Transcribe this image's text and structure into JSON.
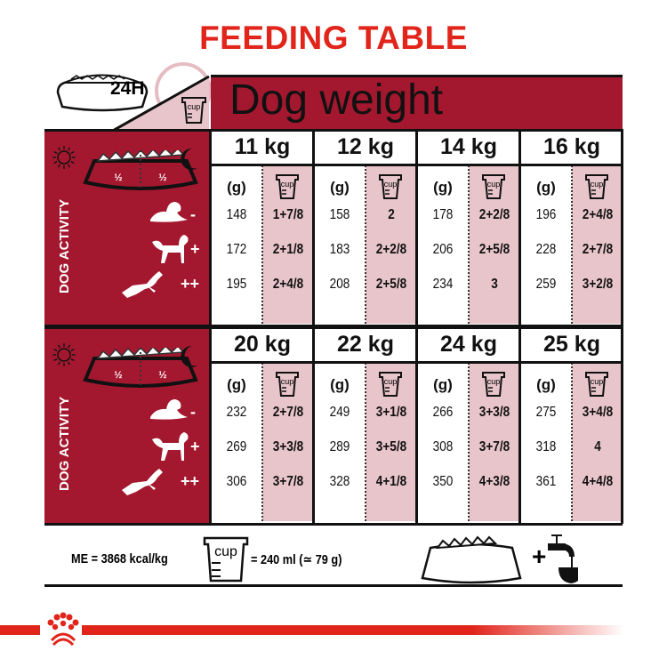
{
  "title": "FEEDING TABLE",
  "header": {
    "period": "24H",
    "dog_weight_label": "Dog weight",
    "cup_icon_label": "cup"
  },
  "side_panel": {
    "activity_label": "DOG ACTIVITY",
    "half_left": "½",
    "half_right": "½",
    "activity_levels": [
      "-",
      "+",
      "++"
    ]
  },
  "units": {
    "grams": "(g)",
    "cup": "cup"
  },
  "colors": {
    "title_red": "#e1251b",
    "panel_red": "#a3182f",
    "cup_column_pink": "#e8c5cb"
  },
  "blocks": [
    {
      "weights": [
        {
          "label": "11 kg",
          "rows": [
            [
              "148",
              "1+7/8"
            ],
            [
              "172",
              "2+1/8"
            ],
            [
              "195",
              "2+4/8"
            ]
          ]
        },
        {
          "label": "12 kg",
          "rows": [
            [
              "158",
              "2"
            ],
            [
              "183",
              "2+2/8"
            ],
            [
              "208",
              "2+5/8"
            ]
          ]
        },
        {
          "label": "14 kg",
          "rows": [
            [
              "178",
              "2+2/8"
            ],
            [
              "206",
              "2+5/8"
            ],
            [
              "234",
              "3"
            ]
          ]
        },
        {
          "label": "16 kg",
          "rows": [
            [
              "196",
              "2+4/8"
            ],
            [
              "228",
              "2+7/8"
            ],
            [
              "259",
              "3+2/8"
            ]
          ]
        }
      ]
    },
    {
      "weights": [
        {
          "label": "20 kg",
          "rows": [
            [
              "232",
              "2+7/8"
            ],
            [
              "269",
              "3+3/8"
            ],
            [
              "306",
              "3+7/8"
            ]
          ]
        },
        {
          "label": "22 kg",
          "rows": [
            [
              "249",
              "3+1/8"
            ],
            [
              "289",
              "3+5/8"
            ],
            [
              "328",
              "4+1/8"
            ]
          ]
        },
        {
          "label": "24 kg",
          "rows": [
            [
              "266",
              "3+3/8"
            ],
            [
              "308",
              "3+7/8"
            ],
            [
              "350",
              "4+3/8"
            ]
          ]
        },
        {
          "label": "25 kg",
          "rows": [
            [
              "275",
              "3+4/8"
            ],
            [
              "318",
              "4"
            ],
            [
              "361",
              "4+4/8"
            ]
          ]
        }
      ]
    }
  ],
  "footer": {
    "energy": "ME = 3868 kcal/kg",
    "cup_equivalence": "= 240 ml (≃ 79 g)",
    "plus": "+"
  },
  "icons": [
    "bowl-icon",
    "clock-icon",
    "cup-icon",
    "sun-icon",
    "moon-icon",
    "dog-lying-icon",
    "dog-standing-icon",
    "dog-running-icon",
    "water-tap-icon",
    "royal-canin-crown-logo"
  ]
}
